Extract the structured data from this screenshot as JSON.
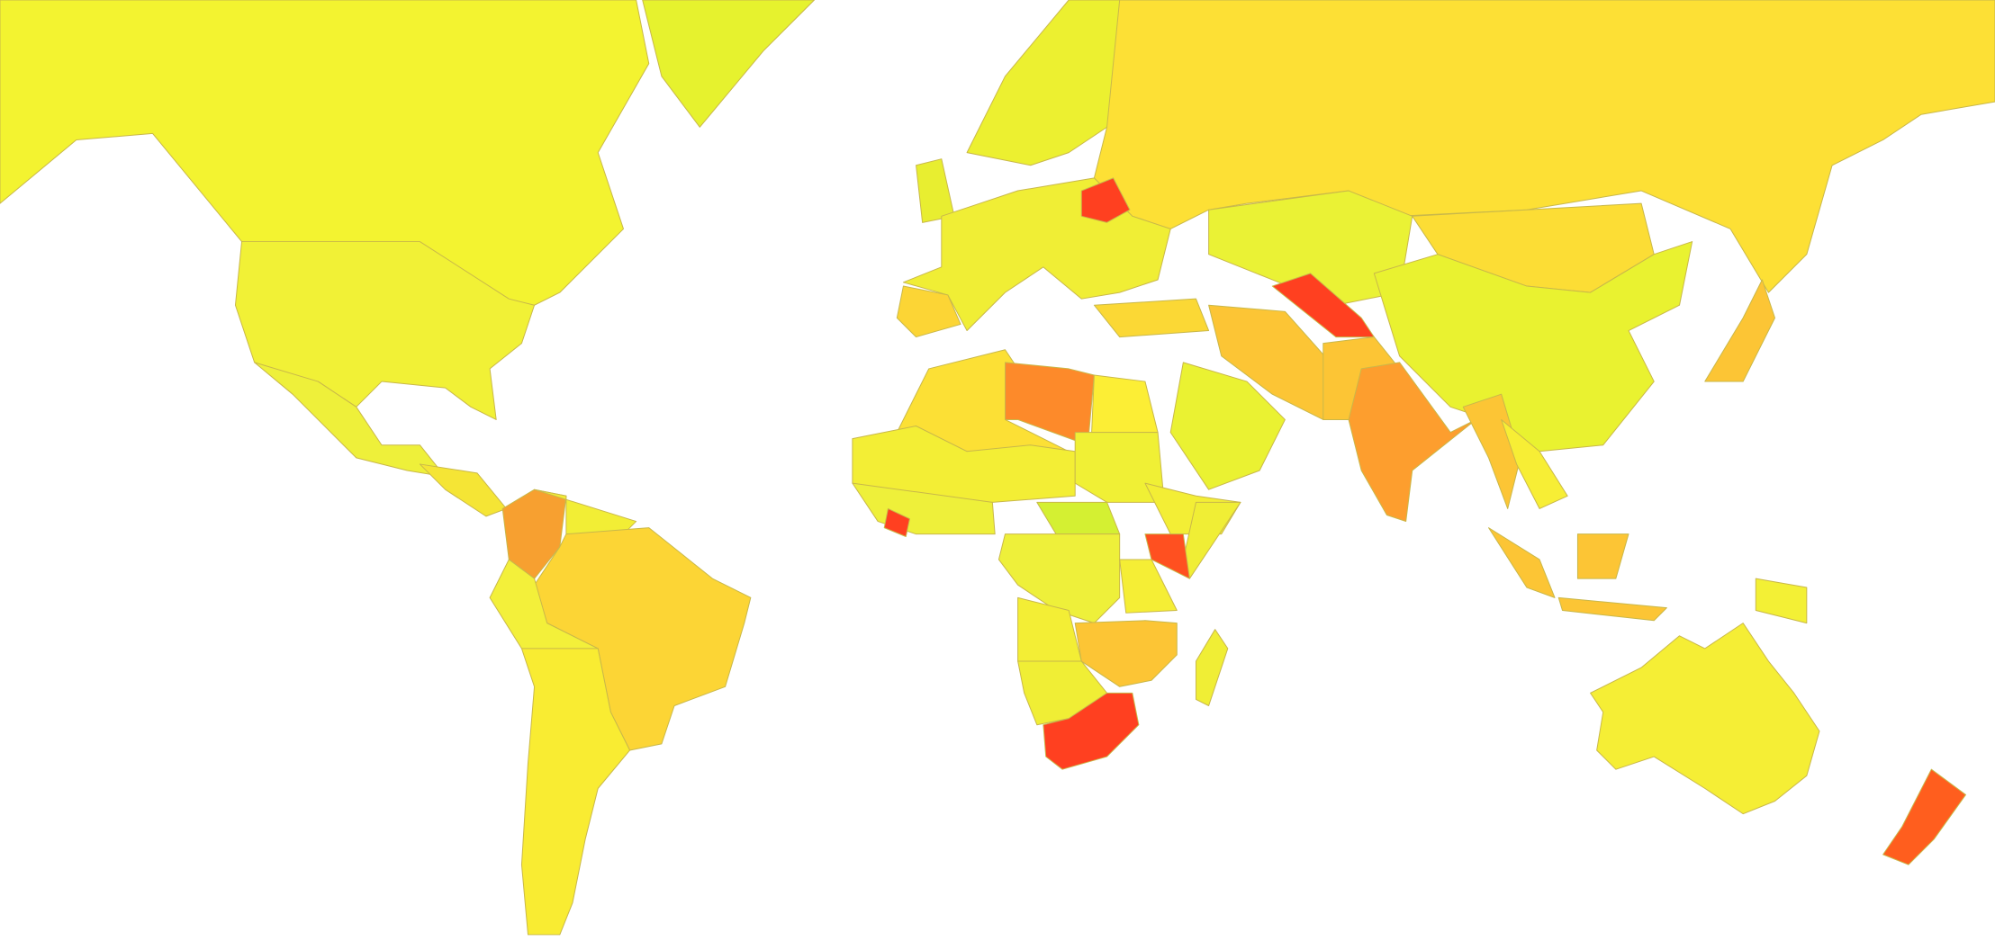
{
  "map": {
    "type": "choropleth",
    "background": "#ffffff",
    "border_color": "#c9b84a",
    "region_fills": [
      {
        "id": "canada",
        "fill": "#f3f330"
      },
      {
        "id": "greenland",
        "fill": "#e6f22e"
      },
      {
        "id": "usa",
        "fill": "#f1f136"
      },
      {
        "id": "mexico",
        "fill": "#eef03a"
      },
      {
        "id": "central-america",
        "fill": "#f5e535"
      },
      {
        "id": "colombia",
        "fill": "#f7a030"
      },
      {
        "id": "venezuela",
        "fill": "#f2ee35"
      },
      {
        "id": "brazil",
        "fill": "#fcd535"
      },
      {
        "id": "peru",
        "fill": "#f3f03a"
      },
      {
        "id": "southern-cone",
        "fill": "#f9ec32"
      },
      {
        "id": "russia",
        "fill": "#fde035"
      },
      {
        "id": "scandinavia",
        "fill": "#ecf030"
      },
      {
        "id": "uk",
        "fill": "#e8ee30"
      },
      {
        "id": "western-europe",
        "fill": "#f0ee35"
      },
      {
        "id": "spain",
        "fill": "#fcd535"
      },
      {
        "id": "belarus",
        "fill": "#ff4020"
      },
      {
        "id": "turkey",
        "fill": "#fbd835"
      },
      {
        "id": "saudi-arabia",
        "fill": "#eaf232"
      },
      {
        "id": "iran",
        "fill": "#fcc535"
      },
      {
        "id": "kazakhstan",
        "fill": "#eaf235"
      },
      {
        "id": "uzbekistan",
        "fill": "#ff4020"
      },
      {
        "id": "pakistan",
        "fill": "#fcc535"
      },
      {
        "id": "india",
        "fill": "#fd9e2e"
      },
      {
        "id": "mongolia",
        "fill": "#fcdd35"
      },
      {
        "id": "china",
        "fill": "#e9f230"
      },
      {
        "id": "myanmar-thailand",
        "fill": "#fcc535"
      },
      {
        "id": "indochina",
        "fill": "#f7ee35"
      },
      {
        "id": "japan",
        "fill": "#fcc535"
      },
      {
        "id": "sumatra-java",
        "fill": "#fcc535"
      },
      {
        "id": "borneo",
        "fill": "#fcc535"
      },
      {
        "id": "lesser-sunda",
        "fill": "#fcc535"
      },
      {
        "id": "new-guinea",
        "fill": "#f3f035"
      },
      {
        "id": "australia",
        "fill": "#f5ee35"
      },
      {
        "id": "new-zealand",
        "fill": "#ff5e1e"
      },
      {
        "id": "algeria",
        "fill": "#fce035"
      },
      {
        "id": "libya",
        "fill": "#fd8a2a"
      },
      {
        "id": "egypt",
        "fill": "#fcee35"
      },
      {
        "id": "sahel",
        "fill": "#f3ee35"
      },
      {
        "id": "sudan",
        "fill": "#f0f035"
      },
      {
        "id": "west-africa",
        "fill": "#eef03a"
      },
      {
        "id": "sierra-leone",
        "fill": "#ff4020"
      },
      {
        "id": "central-african-republic",
        "fill": "#d4f032"
      },
      {
        "id": "ethiopia",
        "fill": "#f3ee35"
      },
      {
        "id": "somalia",
        "fill": "#f0ee35"
      },
      {
        "id": "kenya",
        "fill": "#ff5020"
      },
      {
        "id": "dr-congo",
        "fill": "#eef03a"
      },
      {
        "id": "tanzania",
        "fill": "#f5ee35"
      },
      {
        "id": "angola",
        "fill": "#f3ee35"
      },
      {
        "id": "zambia-mozambique",
        "fill": "#fcc535"
      },
      {
        "id": "namibia-botswana",
        "fill": "#f0ee35"
      },
      {
        "id": "south-africa",
        "fill": "#ff4020"
      },
      {
        "id": "madagascar",
        "fill": "#f0ee35"
      }
    ]
  }
}
